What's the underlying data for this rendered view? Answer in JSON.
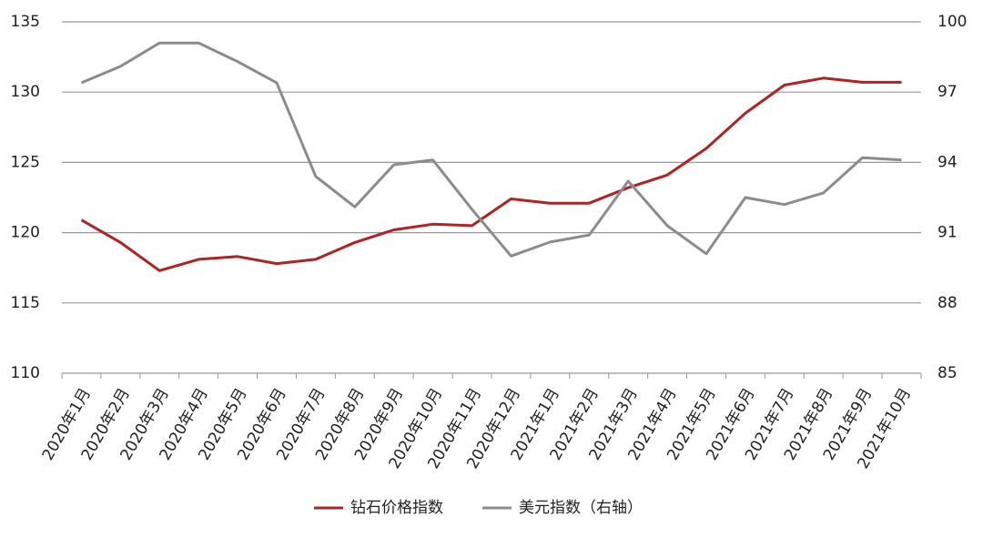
{
  "chart_data": {
    "type": "line",
    "categories": [
      "2020年1月",
      "2020年2月",
      "2020年3月",
      "2020年4月",
      "2020年5月",
      "2020年6月",
      "2020年7月",
      "2020年8月",
      "2020年9月",
      "2020年10月",
      "2020年11月",
      "2020年12月",
      "2021年1月",
      "2021年2月",
      "2021年3月",
      "2021年4月",
      "2021年5月",
      "2021年6月",
      "2021年7月",
      "2021年8月",
      "2021年9月",
      "2021年10月"
    ],
    "series": [
      {
        "name": "钻石价格指数",
        "color": "#b22222",
        "values": [
          120.9,
          119.3,
          117.3,
          118.1,
          118.3,
          117.8,
          118.1,
          119.3,
          120.2,
          120.6,
          120.5,
          122.4,
          122.1,
          122.1,
          123.2,
          124.1,
          126.0,
          128.5,
          130.5,
          131.0,
          130.7,
          130.7
        ]
      },
      {
        "name": "美元指数（右轴）",
        "color": "#8c8c8c",
        "axis": "y2",
        "values": [
          97.4,
          98.1,
          99.1,
          99.1,
          98.3,
          97.4,
          93.4,
          92.1,
          93.9,
          94.1,
          92.0,
          90.0,
          90.6,
          90.9,
          93.2,
          91.3,
          90.1,
          92.5,
          92.2,
          92.7,
          94.2,
          94.1
        ]
      }
    ],
    "ylim": [
      110,
      135
    ],
    "yticks": [
      110,
      115,
      120,
      125,
      130,
      135
    ],
    "y2lim": [
      85,
      100
    ],
    "y2ticks": [
      85,
      88,
      91,
      94,
      97,
      100
    ],
    "grid": true,
    "legend": "bottom"
  }
}
